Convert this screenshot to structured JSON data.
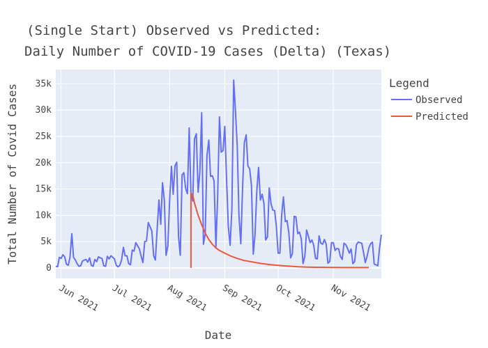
{
  "chart_data": {
    "type": "line",
    "title_lines": [
      "(Single Start) Observed vs Predicted:",
      "Daily Number of COVID-19 Cases (Delta) (Texas)"
    ],
    "xlabel": "Date",
    "ylabel": "Total Number of Covid Cases",
    "x_ticks": [
      {
        "date": "2021-06-01",
        "label": "Jun 2021"
      },
      {
        "date": "2021-07-01",
        "label": "Jul 2021"
      },
      {
        "date": "2021-08-01",
        "label": "Aug 2021"
      },
      {
        "date": "2021-09-01",
        "label": "Sep 2021"
      },
      {
        "date": "2021-10-01",
        "label": "Oct 2021"
      },
      {
        "date": "2021-11-01",
        "label": "Nov 2021"
      }
    ],
    "xlim": [
      "2021-05-29",
      "2021-11-28"
    ],
    "y_ticks": [
      0,
      5000,
      10000,
      15000,
      20000,
      25000,
      30000,
      35000
    ],
    "y_tick_labels": [
      "0",
      "5k",
      "10k",
      "15k",
      "20k",
      "25k",
      "30k",
      "35k"
    ],
    "ylim": [
      -2000,
      37700
    ],
    "legend": {
      "title": "Legend",
      "position": "right"
    },
    "grid": true,
    "colors": {
      "observed": "#636efa",
      "predicted": "#ef553b",
      "plot_bg": "#e5ecf6",
      "grid": "#ffffff"
    },
    "series": [
      {
        "name": "Observed",
        "color": "#636efa",
        "points": [
          [
            "2021-05-29",
            300
          ],
          [
            "2021-05-30",
            200
          ],
          [
            "2021-05-31",
            2000
          ],
          [
            "2021-06-01",
            1800
          ],
          [
            "2021-06-02",
            2500
          ],
          [
            "2021-06-03",
            2100
          ],
          [
            "2021-06-04",
            700
          ],
          [
            "2021-06-05",
            500
          ],
          [
            "2021-06-06",
            2000
          ],
          [
            "2021-06-07",
            6500
          ],
          [
            "2021-06-08",
            2000
          ],
          [
            "2021-06-09",
            1500
          ],
          [
            "2021-06-10",
            800
          ],
          [
            "2021-06-11",
            300
          ],
          [
            "2021-06-12",
            400
          ],
          [
            "2021-06-13",
            1300
          ],
          [
            "2021-06-14",
            1500
          ],
          [
            "2021-06-15",
            1600
          ],
          [
            "2021-06-16",
            1100
          ],
          [
            "2021-06-17",
            1900
          ],
          [
            "2021-06-18",
            500
          ],
          [
            "2021-06-19",
            300
          ],
          [
            "2021-06-20",
            1600
          ],
          [
            "2021-06-21",
            1200
          ],
          [
            "2021-06-22",
            2100
          ],
          [
            "2021-06-23",
            1900
          ],
          [
            "2021-06-24",
            1800
          ],
          [
            "2021-06-25",
            400
          ],
          [
            "2021-06-26",
            300
          ],
          [
            "2021-06-27",
            2200
          ],
          [
            "2021-06-28",
            1700
          ],
          [
            "2021-06-29",
            2300
          ],
          [
            "2021-06-30",
            2000
          ],
          [
            "2021-07-01",
            1700
          ],
          [
            "2021-07-02",
            500
          ],
          [
            "2021-07-03",
            200
          ],
          [
            "2021-07-04",
            500
          ],
          [
            "2021-07-05",
            1500
          ],
          [
            "2021-07-06",
            3900
          ],
          [
            "2021-07-07",
            2300
          ],
          [
            "2021-07-08",
            2300
          ],
          [
            "2021-07-09",
            800
          ],
          [
            "2021-07-10",
            600
          ],
          [
            "2021-07-11",
            3400
          ],
          [
            "2021-07-12",
            3200
          ],
          [
            "2021-07-13",
            4800
          ],
          [
            "2021-07-14",
            4200
          ],
          [
            "2021-07-15",
            3600
          ],
          [
            "2021-07-16",
            2200
          ],
          [
            "2021-07-17",
            1000
          ],
          [
            "2021-07-18",
            5000
          ],
          [
            "2021-07-19",
            5100
          ],
          [
            "2021-07-20",
            8600
          ],
          [
            "2021-07-21",
            7800
          ],
          [
            "2021-07-22",
            7000
          ],
          [
            "2021-07-23",
            2300
          ],
          [
            "2021-07-24",
            1500
          ],
          [
            "2021-07-25",
            7600
          ],
          [
            "2021-07-26",
            12900
          ],
          [
            "2021-07-27",
            8300
          ],
          [
            "2021-07-28",
            16200
          ],
          [
            "2021-07-29",
            12900
          ],
          [
            "2021-07-30",
            2400
          ],
          [
            "2021-07-31",
            4200
          ],
          [
            "2021-08-01",
            12800
          ],
          [
            "2021-08-02",
            19300
          ],
          [
            "2021-08-03",
            14000
          ],
          [
            "2021-08-04",
            19400
          ],
          [
            "2021-08-05",
            20100
          ],
          [
            "2021-08-06",
            5900
          ],
          [
            "2021-08-07",
            2400
          ],
          [
            "2021-08-08",
            17700
          ],
          [
            "2021-08-09",
            18100
          ],
          [
            "2021-08-10",
            15100
          ],
          [
            "2021-08-11",
            14100
          ],
          [
            "2021-08-12",
            26600
          ],
          [
            "2021-08-13",
            14200
          ],
          [
            "2021-08-14",
            12700
          ],
          [
            "2021-08-15",
            24500
          ],
          [
            "2021-08-16",
            25500
          ],
          [
            "2021-08-17",
            14400
          ],
          [
            "2021-08-18",
            18300
          ],
          [
            "2021-08-19",
            29500
          ],
          [
            "2021-08-20",
            4500
          ],
          [
            "2021-08-21",
            6500
          ],
          [
            "2021-08-22",
            21400
          ],
          [
            "2021-08-23",
            24300
          ],
          [
            "2021-08-24",
            17400
          ],
          [
            "2021-08-25",
            17500
          ],
          [
            "2021-08-26",
            16500
          ],
          [
            "2021-08-27",
            4000
          ],
          [
            "2021-08-28",
            13500
          ],
          [
            "2021-08-29",
            28700
          ],
          [
            "2021-08-30",
            22000
          ],
          [
            "2021-08-31",
            22300
          ],
          [
            "2021-09-01",
            26900
          ],
          [
            "2021-09-02",
            16800
          ],
          [
            "2021-09-03",
            7900
          ],
          [
            "2021-09-04",
            4300
          ],
          [
            "2021-09-05",
            11100
          ],
          [
            "2021-09-06",
            35700
          ],
          [
            "2021-09-07",
            30000
          ],
          [
            "2021-09-08",
            23200
          ],
          [
            "2021-09-09",
            9900
          ],
          [
            "2021-09-10",
            4600
          ],
          [
            "2021-09-11",
            15300
          ],
          [
            "2021-09-12",
            23800
          ],
          [
            "2021-09-13",
            25300
          ],
          [
            "2021-09-14",
            19400
          ],
          [
            "2021-09-15",
            18800
          ],
          [
            "2021-09-16",
            15700
          ],
          [
            "2021-09-17",
            2600
          ],
          [
            "2021-09-18",
            6300
          ],
          [
            "2021-09-19",
            14700
          ],
          [
            "2021-09-20",
            19100
          ],
          [
            "2021-09-21",
            12900
          ],
          [
            "2021-09-22",
            14000
          ],
          [
            "2021-09-23",
            12300
          ],
          [
            "2021-09-24",
            5300
          ],
          [
            "2021-09-25",
            5900
          ],
          [
            "2021-09-26",
            15200
          ],
          [
            "2021-09-27",
            12200
          ],
          [
            "2021-09-28",
            11000
          ],
          [
            "2021-09-29",
            10900
          ],
          [
            "2021-09-30",
            7900
          ],
          [
            "2021-10-01",
            2800
          ],
          [
            "2021-10-02",
            2800
          ],
          [
            "2021-10-03",
            10200
          ],
          [
            "2021-10-04",
            13500
          ],
          [
            "2021-10-05",
            8800
          ],
          [
            "2021-10-06",
            9000
          ],
          [
            "2021-10-07",
            6700
          ],
          [
            "2021-10-08",
            1900
          ],
          [
            "2021-10-09",
            2700
          ],
          [
            "2021-10-10",
            9800
          ],
          [
            "2021-10-11",
            9700
          ],
          [
            "2021-10-12",
            6500
          ],
          [
            "2021-10-13",
            6800
          ],
          [
            "2021-10-14",
            5500
          ],
          [
            "2021-10-15",
            800
          ],
          [
            "2021-10-16",
            2200
          ],
          [
            "2021-10-17",
            7200
          ],
          [
            "2021-10-18",
            6000
          ],
          [
            "2021-10-19",
            4800
          ],
          [
            "2021-10-20",
            5300
          ],
          [
            "2021-10-21",
            4300
          ],
          [
            "2021-10-22",
            1800
          ],
          [
            "2021-10-23",
            1700
          ],
          [
            "2021-10-24",
            6100
          ],
          [
            "2021-10-25",
            4700
          ],
          [
            "2021-10-26",
            4500
          ],
          [
            "2021-10-27",
            5400
          ],
          [
            "2021-10-28",
            4500
          ],
          [
            "2021-10-29",
            900
          ],
          [
            "2021-10-30",
            1200
          ],
          [
            "2021-10-31",
            4800
          ],
          [
            "2021-11-01",
            4800
          ],
          [
            "2021-11-02",
            3300
          ],
          [
            "2021-11-03",
            3700
          ],
          [
            "2021-11-04",
            3600
          ],
          [
            "2021-11-05",
            2200
          ],
          [
            "2021-11-06",
            1600
          ],
          [
            "2021-11-07",
            4700
          ],
          [
            "2021-11-08",
            4400
          ],
          [
            "2021-11-09",
            3700
          ],
          [
            "2021-11-10",
            2800
          ],
          [
            "2021-11-11",
            3600
          ],
          [
            "2021-11-12",
            800
          ],
          [
            "2021-11-13",
            1200
          ],
          [
            "2021-11-14",
            4400
          ],
          [
            "2021-11-15",
            4900
          ],
          [
            "2021-11-16",
            4800
          ],
          [
            "2021-11-17",
            4700
          ],
          [
            "2021-11-18",
            2900
          ],
          [
            "2021-11-19",
            1000
          ],
          [
            "2021-11-20",
            2200
          ],
          [
            "2021-11-21",
            3800
          ],
          [
            "2021-11-22",
            4600
          ],
          [
            "2021-11-23",
            4900
          ],
          [
            "2021-11-24",
            700
          ],
          [
            "2021-11-25",
            600
          ],
          [
            "2021-11-26",
            400
          ],
          [
            "2021-11-27",
            3800
          ],
          [
            "2021-11-28",
            6300
          ]
        ]
      },
      {
        "name": "Predicted",
        "color": "#ef553b",
        "points": [
          [
            "2021-08-13",
            0
          ],
          [
            "2021-08-13",
            14200
          ],
          [
            "2021-08-14",
            13800
          ],
          [
            "2021-08-15",
            12300
          ],
          [
            "2021-08-17",
            10000
          ],
          [
            "2021-08-19",
            8200
          ],
          [
            "2021-08-21",
            6600
          ],
          [
            "2021-08-23",
            5400
          ],
          [
            "2021-08-25",
            4500
          ],
          [
            "2021-08-27",
            3800
          ],
          [
            "2021-08-29",
            3300
          ],
          [
            "2021-09-01",
            2800
          ],
          [
            "2021-09-04",
            2300
          ],
          [
            "2021-09-08",
            1800
          ],
          [
            "2021-09-12",
            1400
          ],
          [
            "2021-09-17",
            1100
          ],
          [
            "2021-09-22",
            800
          ],
          [
            "2021-09-27",
            600
          ],
          [
            "2021-10-02",
            450
          ],
          [
            "2021-10-07",
            330
          ],
          [
            "2021-10-12",
            220
          ],
          [
            "2021-10-17",
            160
          ],
          [
            "2021-10-22",
            120
          ],
          [
            "2021-10-27",
            100
          ],
          [
            "2021-11-01",
            80
          ],
          [
            "2021-11-06",
            70
          ],
          [
            "2021-11-11",
            60
          ],
          [
            "2021-11-16",
            60
          ],
          [
            "2021-11-21",
            60
          ]
        ]
      }
    ]
  }
}
